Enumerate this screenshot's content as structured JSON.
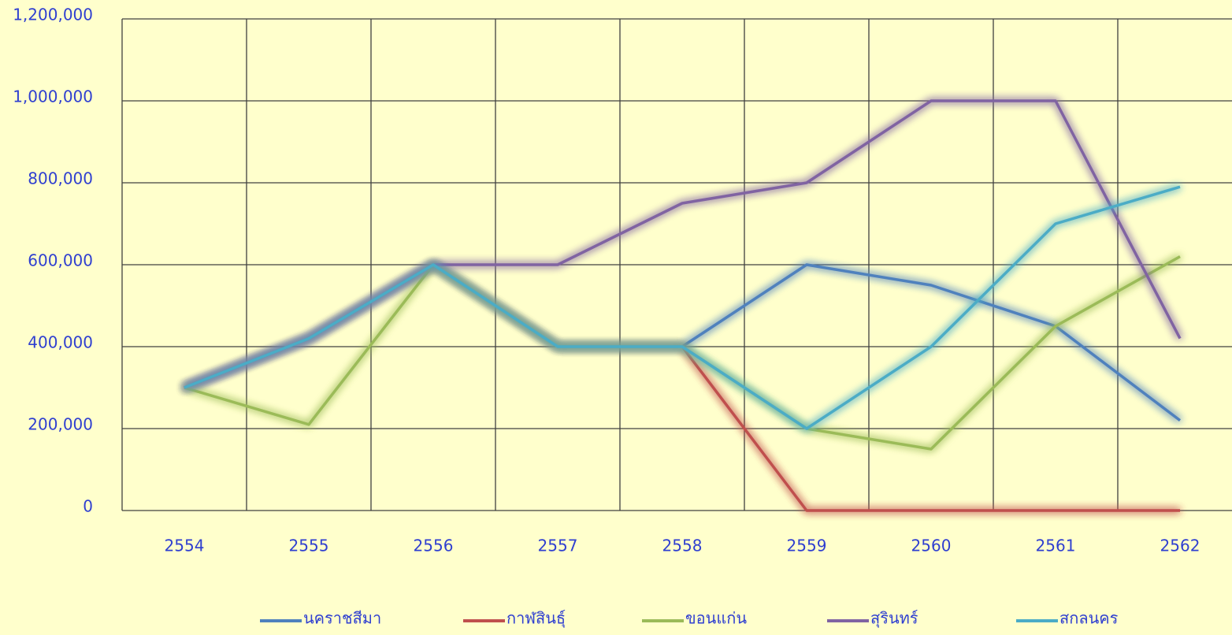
{
  "chart_data": {
    "type": "line",
    "categories": [
      "2554",
      "2555",
      "2556",
      "2557",
      "2558",
      "2559",
      "2560",
      "2561",
      "2562"
    ],
    "series": [
      {
        "name": "นคราชสีมา",
        "color": "#4f81bd",
        "values": [
          300000,
          420000,
          600000,
          400000,
          400000,
          600000,
          550000,
          450000,
          220000
        ]
      },
      {
        "name": "กาฬสินธุ์",
        "color": "#c0504d",
        "values": [
          300000,
          420000,
          600000,
          400000,
          400000,
          0,
          0,
          0,
          0
        ]
      },
      {
        "name": "ขอนแก่น",
        "color": "#9bbb59",
        "values": [
          300000,
          210000,
          600000,
          400000,
          400000,
          200000,
          150000,
          450000,
          620000
        ]
      },
      {
        "name": "สุรินทร์",
        "color": "#8064a2",
        "values": [
          300000,
          420000,
          600000,
          600000,
          750000,
          800000,
          1000000,
          1000000,
          420000
        ]
      },
      {
        "name": "สกลนคร",
        "color": "#4bacc6",
        "values": [
          300000,
          420000,
          600000,
          400000,
          400000,
          200000,
          400000,
          700000,
          790000
        ]
      }
    ],
    "ylim": [
      0,
      1200000
    ],
    "yticks": [
      0,
      {
        "value": 200000,
        "label": "200,000"
      },
      {
        "value": 400000,
        "label": "400,000"
      },
      {
        "value": 600000,
        "label": "600,000"
      },
      {
        "value": 800000,
        "label": "800,000"
      },
      {
        "value": 1000000,
        "label": "1,000,000"
      },
      {
        "value": 1200000,
        "label": "1,200,000"
      }
    ],
    "grid": true,
    "legend": "bottom"
  }
}
